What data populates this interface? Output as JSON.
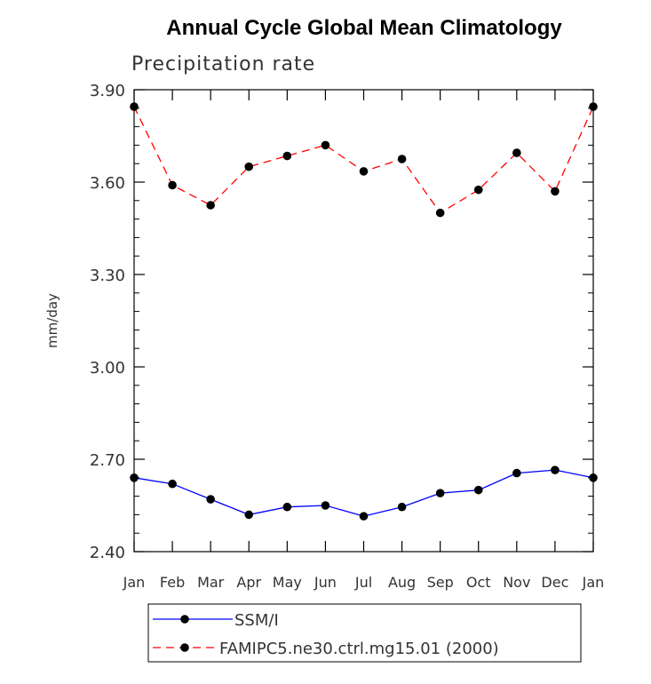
{
  "chart_data": {
    "type": "line",
    "title": "Annual Cycle Global Mean Climatology",
    "subtitle": "Precipitation rate",
    "xlabel": "",
    "ylabel": "mm/day",
    "ylim": [
      2.4,
      3.9
    ],
    "yticks": [
      "2.40",
      "2.70",
      "3.00",
      "3.30",
      "3.60",
      "3.90"
    ],
    "ytick_values": [
      2.4,
      2.7,
      3.0,
      3.3,
      3.6,
      3.9
    ],
    "categories": [
      "Jan",
      "Feb",
      "Mar",
      "Apr",
      "May",
      "Jun",
      "Jul",
      "Aug",
      "Sep",
      "Oct",
      "Nov",
      "Dec",
      "Jan"
    ],
    "grid": false,
    "legend_position": "bottom",
    "series": [
      {
        "name": "SSM/I",
        "color": "#0000ff",
        "dash": "solid",
        "marker": "filled-circle",
        "values": [
          2.64,
          2.62,
          2.57,
          2.52,
          2.545,
          2.55,
          2.515,
          2.545,
          2.59,
          2.6,
          2.655,
          2.665,
          2.64
        ]
      },
      {
        "name": "FAMIPC5.ne30.ctrl.mg15.01 (2000)",
        "color": "#ff0000",
        "dash": "dashed",
        "marker": "filled-circle",
        "values": [
          3.845,
          3.59,
          3.525,
          3.65,
          3.685,
          3.72,
          3.635,
          3.675,
          3.5,
          3.575,
          3.695,
          3.57,
          3.845
        ]
      }
    ]
  }
}
